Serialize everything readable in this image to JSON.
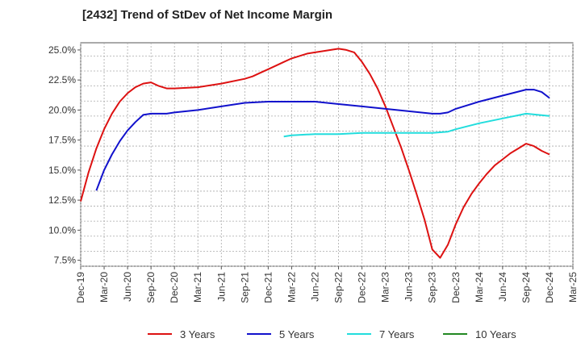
{
  "chart_data": {
    "type": "line",
    "title": "[2432]  Trend of StDev of Net Income Margin",
    "xlabel": "",
    "ylabel": "",
    "x_ticks": [
      "Dec-19",
      "Mar-20",
      "Jun-20",
      "Sep-20",
      "Dec-20",
      "Mar-21",
      "Jun-21",
      "Sep-21",
      "Dec-21",
      "Mar-22",
      "Jun-22",
      "Sep-22",
      "Dec-22",
      "Mar-23",
      "Jun-23",
      "Sep-23",
      "Dec-23",
      "Mar-24",
      "Jun-24",
      "Sep-24",
      "Dec-24",
      "Mar-25"
    ],
    "y_ticks": [
      "7.5%",
      "10.0%",
      "12.5%",
      "15.0%",
      "17.5%",
      "20.0%",
      "22.5%",
      "25.0%"
    ],
    "y_tick_values": [
      7.5,
      10.0,
      12.5,
      15.0,
      17.5,
      20.0,
      22.5,
      25.0
    ],
    "ylim": [
      7.0,
      25.6
    ],
    "grid": true,
    "legend_position": "bottom",
    "series": [
      {
        "name": "3 Years",
        "color": "#dd1111",
        "points": [
          [
            "Dec-19",
            12.4
          ],
          [
            "Jan-20",
            14.8
          ],
          [
            "Feb-20",
            16.8
          ],
          [
            "Mar-20",
            18.4
          ],
          [
            "Apr-20",
            19.7
          ],
          [
            "May-20",
            20.7
          ],
          [
            "Jun-20",
            21.4
          ],
          [
            "Jul-20",
            21.9
          ],
          [
            "Aug-20",
            22.2
          ],
          [
            "Sep-20",
            22.3
          ],
          [
            "Oct-20",
            22.0
          ],
          [
            "Nov-20",
            21.8
          ],
          [
            "Dec-20",
            21.8
          ],
          [
            "Mar-21",
            21.9
          ],
          [
            "Jun-21",
            22.2
          ],
          [
            "Sep-21",
            22.6
          ],
          [
            "Oct-21",
            22.8
          ],
          [
            "Nov-21",
            23.1
          ],
          [
            "Dec-21",
            23.4
          ],
          [
            "Jan-22",
            23.7
          ],
          [
            "Feb-22",
            24.0
          ],
          [
            "Mar-22",
            24.3
          ],
          [
            "Apr-22",
            24.5
          ],
          [
            "May-22",
            24.7
          ],
          [
            "Jun-22",
            24.8
          ],
          [
            "Jul-22",
            24.9
          ],
          [
            "Aug-22",
            25.0
          ],
          [
            "Sep-22",
            25.1
          ],
          [
            "Oct-22",
            25.0
          ],
          [
            "Nov-22",
            24.8
          ],
          [
            "Dec-22",
            24.0
          ],
          [
            "Jan-23",
            23.0
          ],
          [
            "Feb-23",
            21.8
          ],
          [
            "Mar-23",
            20.3
          ],
          [
            "Apr-23",
            18.6
          ],
          [
            "May-23",
            16.9
          ],
          [
            "Jun-23",
            15.0
          ],
          [
            "Jul-23",
            13.0
          ],
          [
            "Aug-23",
            10.9
          ],
          [
            "Sep-23",
            8.4
          ],
          [
            "Oct-23",
            7.7
          ],
          [
            "Nov-23",
            8.8
          ],
          [
            "Dec-23",
            10.5
          ],
          [
            "Jan-24",
            11.9
          ],
          [
            "Feb-24",
            13.0
          ],
          [
            "Mar-24",
            13.9
          ],
          [
            "Apr-24",
            14.7
          ],
          [
            "May-24",
            15.4
          ],
          [
            "Jun-24",
            15.9
          ],
          [
            "Jul-24",
            16.4
          ],
          [
            "Aug-24",
            16.8
          ],
          [
            "Sep-24",
            17.2
          ],
          [
            "Oct-24",
            17.0
          ],
          [
            "Nov-24",
            16.6
          ],
          [
            "Dec-24",
            16.3
          ]
        ]
      },
      {
        "name": "5 Years",
        "color": "#1111cc",
        "points": [
          [
            "Feb-20",
            13.3
          ],
          [
            "Mar-20",
            15.0
          ],
          [
            "Apr-20",
            16.3
          ],
          [
            "May-20",
            17.4
          ],
          [
            "Jun-20",
            18.3
          ],
          [
            "Jul-20",
            19.0
          ],
          [
            "Aug-20",
            19.6
          ],
          [
            "Sep-20",
            19.7
          ],
          [
            "Oct-20",
            19.7
          ],
          [
            "Nov-20",
            19.7
          ],
          [
            "Dec-20",
            19.8
          ],
          [
            "Mar-21",
            20.0
          ],
          [
            "Jun-21",
            20.3
          ],
          [
            "Sep-21",
            20.6
          ],
          [
            "Dec-21",
            20.7
          ],
          [
            "Mar-22",
            20.7
          ],
          [
            "Jun-22",
            20.7
          ],
          [
            "Sep-22",
            20.5
          ],
          [
            "Dec-22",
            20.3
          ],
          [
            "Mar-23",
            20.1
          ],
          [
            "Jun-23",
            19.9
          ],
          [
            "Sep-23",
            19.7
          ],
          [
            "Oct-23",
            19.7
          ],
          [
            "Nov-23",
            19.8
          ],
          [
            "Dec-23",
            20.1
          ],
          [
            "Mar-24",
            20.7
          ],
          [
            "Jun-24",
            21.2
          ],
          [
            "Sep-24",
            21.7
          ],
          [
            "Oct-24",
            21.7
          ],
          [
            "Nov-24",
            21.5
          ],
          [
            "Dec-24",
            21.0
          ]
        ]
      },
      {
        "name": "7 Years",
        "color": "#22dddd",
        "points": [
          [
            "Feb-22",
            17.8
          ],
          [
            "Mar-22",
            17.9
          ],
          [
            "Jun-22",
            18.0
          ],
          [
            "Sep-22",
            18.0
          ],
          [
            "Dec-22",
            18.1
          ],
          [
            "Mar-23",
            18.1
          ],
          [
            "Jun-23",
            18.1
          ],
          [
            "Sep-23",
            18.1
          ],
          [
            "Nov-23",
            18.2
          ],
          [
            "Dec-23",
            18.4
          ],
          [
            "Mar-24",
            18.9
          ],
          [
            "Jun-24",
            19.3
          ],
          [
            "Sep-24",
            19.7
          ],
          [
            "Dec-24",
            19.5
          ]
        ]
      },
      {
        "name": "10 Years",
        "color": "#228822",
        "points": []
      }
    ]
  }
}
